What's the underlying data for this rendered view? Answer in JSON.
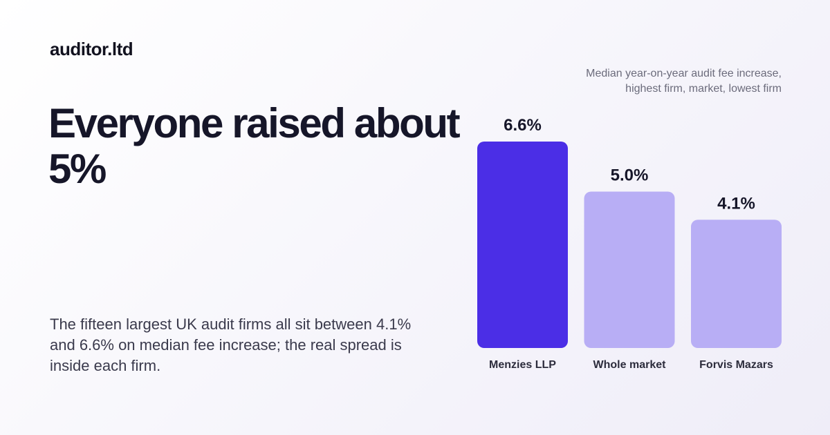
{
  "brand": "auditor.ltd",
  "headline": "Everyone raised about 5%",
  "body": "The fifteen largest UK audit firms all sit between 4.1% and 6.6% on median fee increase; the real spread is inside each firm.",
  "caption": {
    "line1": "Median year-on-year audit fee increase,",
    "line2": "highest firm, market, lowest firm"
  },
  "colors": {
    "highlight": "#4b2ee6",
    "muted": "#b8aef5"
  },
  "chart_data": {
    "type": "bar",
    "categories": [
      "Menzies LLP",
      "Whole market",
      "Forvis Mazars"
    ],
    "values": [
      6.6,
      5.0,
      4.1
    ],
    "value_labels": [
      "6.6%",
      "5.0%",
      "4.1%"
    ],
    "highlight_index": 0,
    "ylim": [
      0,
      6.6
    ],
    "grid": false,
    "title": "",
    "xlabel": "",
    "ylabel": ""
  }
}
